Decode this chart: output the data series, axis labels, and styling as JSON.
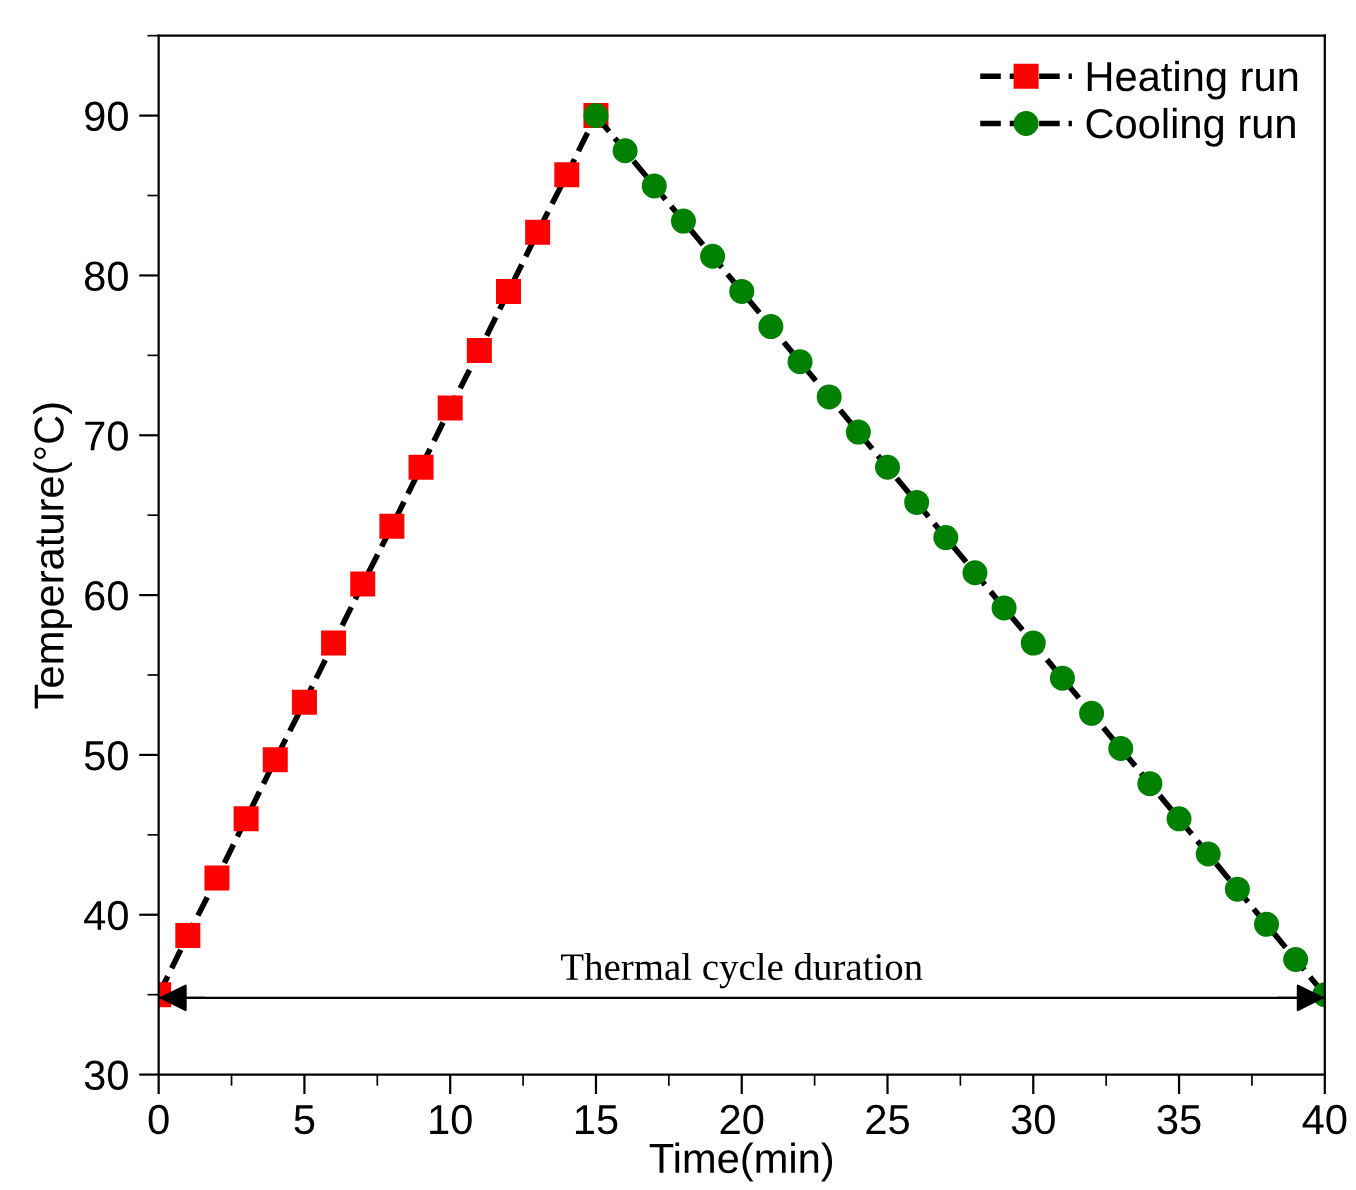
{
  "chart_data": {
    "type": "line",
    "xlabel": "Time(min)",
    "ylabel": "Temperature(°C)",
    "xlim": [
      0,
      40
    ],
    "xticks": [
      0,
      5,
      10,
      15,
      20,
      25,
      30,
      35,
      40
    ],
    "ylim": [
      30,
      95
    ],
    "yticks": [
      30,
      40,
      50,
      60,
      70,
      80,
      90
    ],
    "line_style": "dashed",
    "legend": "top right",
    "grid": false,
    "ref_lines": [
      {
        "axis": "y",
        "value": 34.8,
        "label": "Thermal cycle duration",
        "color": "#000000",
        "line_style": "solid"
      }
    ],
    "series": [
      {
        "name": "Heating run",
        "color": "#ff0000",
        "marker": "square",
        "x": [
          0,
          1,
          2,
          3,
          4,
          5,
          6,
          7,
          8,
          9,
          10,
          11,
          12,
          13,
          14,
          15
        ],
        "values": [
          35,
          38.7,
          42.3,
          46,
          49.7,
          53.3,
          57,
          60.7,
          64.3,
          68,
          71.7,
          75.3,
          79,
          82.7,
          86.3,
          90
        ]
      },
      {
        "name": "Cooling run",
        "color": "#008000",
        "marker": "circle",
        "x": [
          15,
          16,
          17,
          18,
          19,
          20,
          21,
          22,
          23,
          24,
          25,
          26,
          27,
          28,
          29,
          30,
          31,
          32,
          33,
          34,
          35,
          36,
          37,
          38,
          39,
          40
        ],
        "values": [
          90,
          87.8,
          85.6,
          83.4,
          81.2,
          79,
          76.8,
          74.6,
          72.4,
          70.2,
          68,
          65.8,
          63.6,
          61.4,
          59.2,
          57,
          54.8,
          52.6,
          50.4,
          48.2,
          46,
          43.8,
          41.6,
          39.4,
          37.2,
          35
        ]
      }
    ]
  }
}
